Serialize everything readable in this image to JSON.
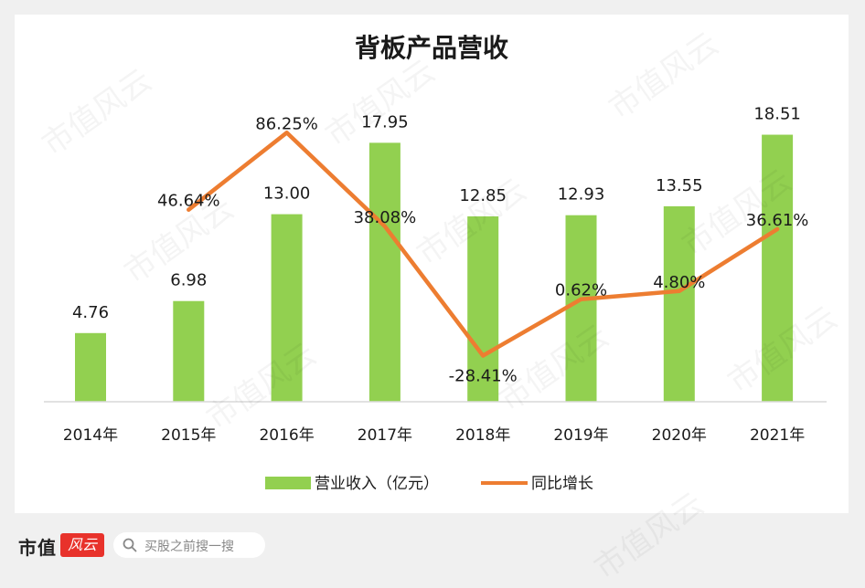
{
  "chart_data": {
    "type": "bar",
    "title": "背板产品营收",
    "categories": [
      "2014年",
      "2015年",
      "2016年",
      "2017年",
      "2018年",
      "2019年",
      "2020年",
      "2021年"
    ],
    "series": [
      {
        "name": "营业收入（亿元）",
        "type": "bar",
        "color": "#92d050",
        "values": [
          4.76,
          6.98,
          13.0,
          17.95,
          12.85,
          12.93,
          13.55,
          18.51
        ],
        "labels": [
          "4.76",
          "6.98",
          "13.00",
          "17.95",
          "12.85",
          "12.93",
          "13.55",
          "18.51"
        ]
      },
      {
        "name": "同比增长",
        "type": "line",
        "color": "#ed7d31",
        "values": [
          null,
          46.64,
          86.25,
          38.08,
          -28.41,
          0.62,
          4.8,
          36.61
        ],
        "labels": [
          null,
          "46.64%",
          "86.25%",
          "38.08%",
          "-28.41%",
          "0.62%",
          "4.80%",
          "36.61%"
        ]
      }
    ],
    "legend_position": "bottom",
    "grid": false
  },
  "footer": {
    "brand": "市值",
    "brand_mark": "风云",
    "search_placeholder": "买股之前搜一搜"
  },
  "watermark_text": "市值风云"
}
